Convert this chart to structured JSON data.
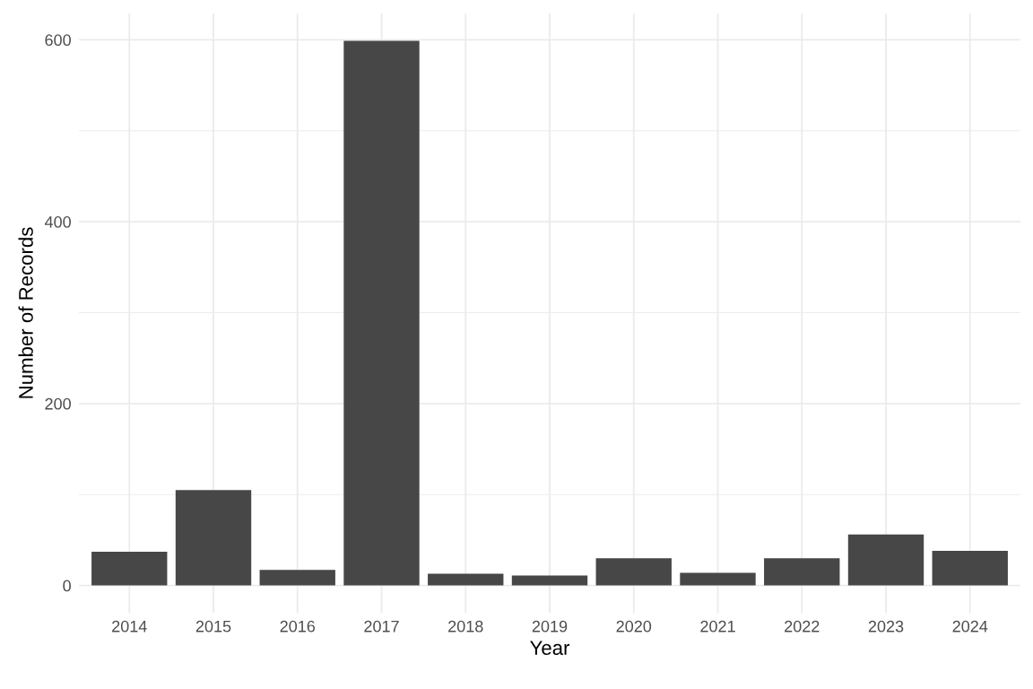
{
  "chart_data": {
    "type": "bar",
    "xlabel": "Year",
    "ylabel": "Number of Records",
    "categories": [
      "2014",
      "2015",
      "2016",
      "2017",
      "2018",
      "2019",
      "2020",
      "2021",
      "2022",
      "2023",
      "2024"
    ],
    "values": [
      37,
      105,
      17,
      599,
      13,
      11,
      30,
      14,
      30,
      56,
      38
    ],
    "color": "#474747",
    "ylim": [
      -30,
      629
    ],
    "yticks": [
      0,
      {
        "value": 100,
        "label": null
      },
      200,
      {
        "value": 300,
        "label": null
      },
      400,
      {
        "value": 500,
        "label": null
      },
      600
    ],
    "grid": true
  }
}
